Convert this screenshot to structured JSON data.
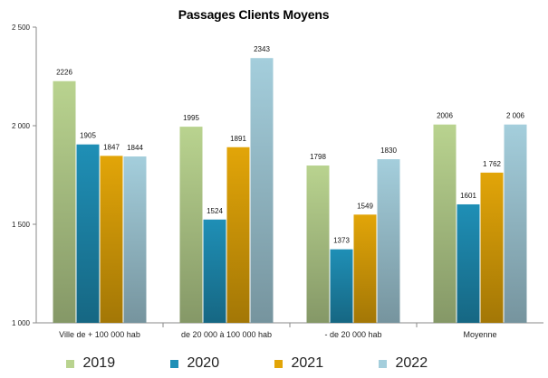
{
  "chart_data": {
    "type": "bar",
    "title": "Passages Clients Moyens",
    "categories": [
      "Ville de + 100 000 hab",
      "de 20 000 à 100 000 hab",
      "- de 20 000 hab",
      "Moyenne"
    ],
    "series": [
      {
        "name": "2019",
        "color": "#b9d38f",
        "values": [
          2226,
          1995,
          1798,
          2006
        ],
        "labels": [
          "2226",
          "1995",
          "1798",
          "2006"
        ]
      },
      {
        "name": "2020",
        "color": "#1f8fb6",
        "values": [
          1905,
          1524,
          1373,
          1601
        ],
        "labels": [
          "1905",
          "1524",
          "1373",
          "1601"
        ]
      },
      {
        "name": "2021",
        "color": "#e2a508",
        "values": [
          1847,
          1891,
          1549,
          1762
        ],
        "labels": [
          "1847",
          "1891",
          "1549",
          "1 762"
        ]
      },
      {
        "name": "2022",
        "color": "#a4cedc",
        "values": [
          1844,
          2343,
          1830,
          2006
        ],
        "labels": [
          "1844",
          "2343",
          "1830",
          "2 006"
        ]
      }
    ],
    "ylim": [
      1000,
      2500
    ],
    "yticks": [
      {
        "value": 1000,
        "label": "1 000"
      },
      {
        "value": 1500,
        "label": "1 500"
      },
      {
        "value": 2000,
        "label": "2 000"
      },
      {
        "value": 2500,
        "label": "2 500"
      }
    ],
    "grid": false,
    "legend_position": "bottom",
    "xlabel": "",
    "ylabel": ""
  }
}
